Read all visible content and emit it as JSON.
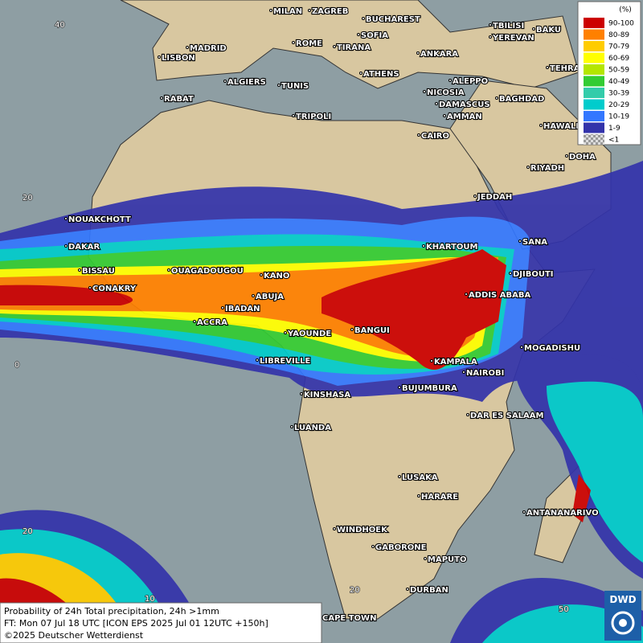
{
  "map": {
    "cities": [
      "MILAN",
      "ZAGREB",
      "BUCHAREST",
      "TBILISI",
      "BAKU",
      "MADRID",
      "ROME",
      "SOFIA",
      "YEREVAN",
      "LISBON",
      "TIRANA",
      "ANKARA",
      "TEHRA",
      "ALGIERS",
      "TUNIS",
      "ATHENS",
      "ALEPPO",
      "RABAT",
      "NICOSIA",
      "BAGHDAD",
      "DAMASCUS",
      "TRIPOLI",
      "AMMAN",
      "HAWALLI",
      "CAIRO",
      "DOHA",
      "RIYADH",
      "JEDDAH",
      "NOUAKCHOTT",
      "SANA",
      "DAKAR",
      "KHARTOUM",
      "BISSAU",
      "OUAGADOUGOU",
      "KANO",
      "DJIBOUTI",
      "CONAKRY",
      "ABUJA",
      "ADDIS ABABA",
      "IBADAN",
      "ACCRA",
      "YAOUNDE",
      "BANGUI",
      "MOGADISHU",
      "LIBREVILLE",
      "KAMPALA",
      "NAIROBI",
      "BUJUMBURA",
      "KINSHASA",
      "DAR ES SALAAM",
      "LUANDA",
      "LUSAKA",
      "HARARE",
      "ANTANANARIVO",
      "WINDHOEK",
      "GABORONE",
      "MAPUTO",
      "DURBAN",
      "CAPE TOWN"
    ],
    "graticule_labels": [
      "40",
      "20",
      "0",
      "20",
      "10",
      "20",
      "50"
    ]
  },
  "legend": {
    "title": "(%)",
    "items": [
      {
        "label": "90-100",
        "color": "#cc0000"
      },
      {
        "label": "80-89",
        "color": "#ff8000"
      },
      {
        "label": "70-79",
        "color": "#ffcc00"
      },
      {
        "label": "60-69",
        "color": "#ffff00"
      },
      {
        "label": "50-59",
        "color": "#b4e600"
      },
      {
        "label": "40-49",
        "color": "#33cc33"
      },
      {
        "label": "30-39",
        "color": "#33ccaa"
      },
      {
        "label": "20-29",
        "color": "#00cccc"
      },
      {
        "label": "10-19",
        "color": "#3377ff"
      },
      {
        "label": "1-9",
        "color": "#3333aa"
      },
      {
        "label": "<1",
        "color": "#bbbbbb"
      }
    ]
  },
  "footer": {
    "line1": "Probability of 24h Total precipitation, 24h >1mm",
    "line2": "FT: Mon 07 Jul 18 UTC [ICON EPS 2025 Jul 01 12UTC +150h]",
    "copyright": "©2025 Deutscher Wetterdienst"
  },
  "logo": {
    "text": "DWD"
  }
}
